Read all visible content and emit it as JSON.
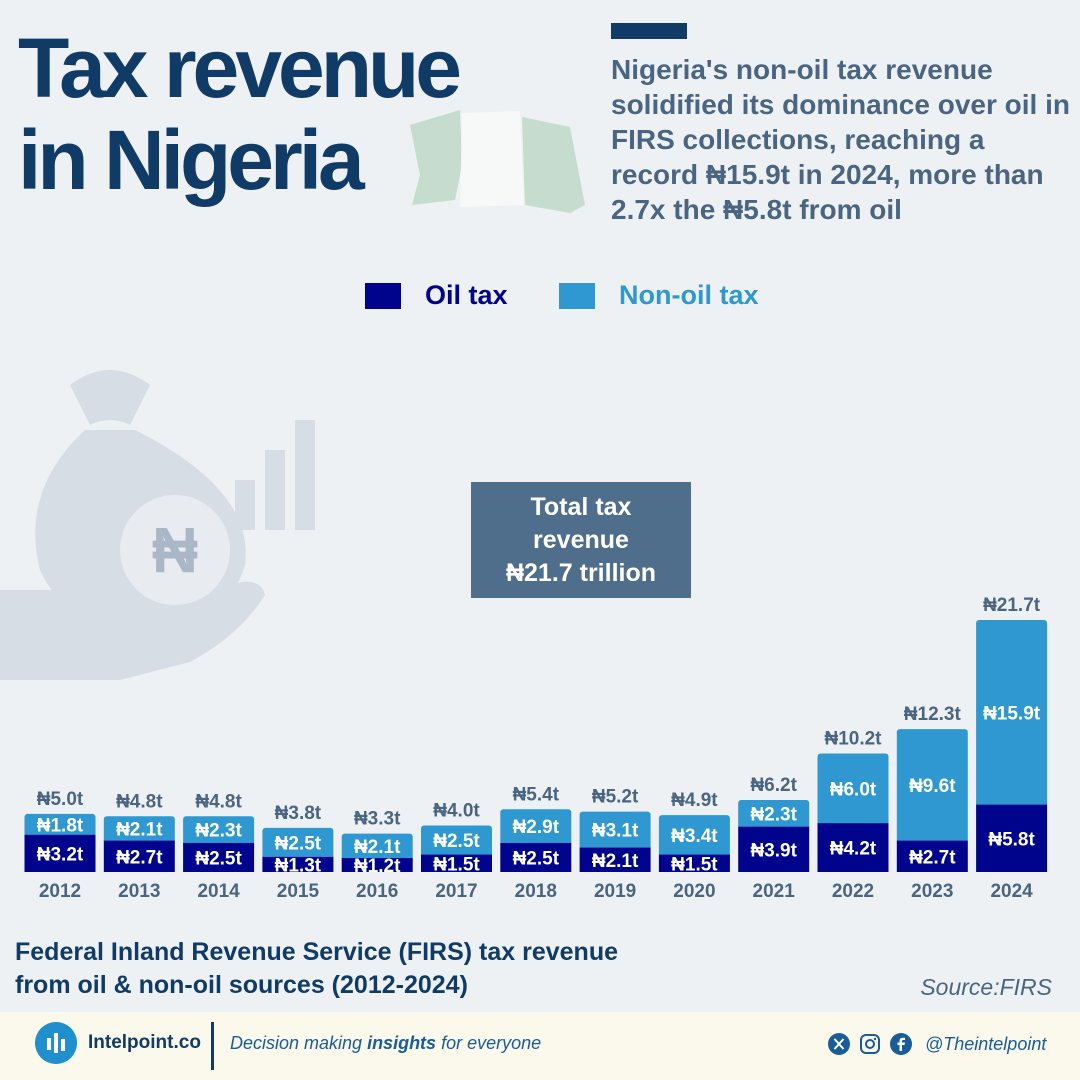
{
  "header": {
    "title_line1": "Tax revenue",
    "title_line2": "in Nigeria",
    "subtitle": "Nigeria's non-oil tax revenue solidified its dominance over oil in FIRS collections, reaching a record ₦15.9t in 2024, more than 2.7x the ₦5.8t from oil"
  },
  "callout": {
    "line1": "Total tax",
    "line2": "revenue",
    "line3": "₦21.7 trillion"
  },
  "footer": {
    "chart_title_line1": "Federal Inland Revenue Service (FIRS) tax revenue",
    "chart_title_line2": "from oil & non-oil sources (2012-2024)",
    "source": "Source:FIRS"
  },
  "brand": {
    "name": "Intelpoint.co",
    "tagline_pre": "Decision making ",
    "tagline_bold": "insights",
    "tagline_post": " for everyone",
    "handle": "@Theintelpoint"
  },
  "colors": {
    "oil": "#00048c",
    "non_oil": "#2f98d1",
    "title": "#0f3b66",
    "muted": "#4a6581",
    "callout_bg": "#4f6e8b"
  },
  "icons": {
    "background": "money-bag-in-hand-icon",
    "social": [
      "x-icon",
      "instagram-icon",
      "facebook-icon"
    ],
    "brand": "intelpoint-logo-icon"
  },
  "chart_data": {
    "type": "bar",
    "stacked": true,
    "categories": [
      "2012",
      "2013",
      "2014",
      "2015",
      "2016",
      "2017",
      "2018",
      "2019",
      "2020",
      "2021",
      "2022",
      "2023",
      "2024"
    ],
    "series": [
      {
        "name": "Oil tax",
        "values": [
          3.2,
          2.7,
          2.5,
          1.3,
          1.2,
          1.5,
          2.5,
          2.1,
          1.5,
          3.9,
          4.2,
          2.7,
          5.8
        ],
        "labels": [
          "₦3.2t",
          "₦2.7t",
          "₦2.5t",
          "₦1.3t",
          "₦1.2t",
          "₦1.5t",
          "₦2.5t",
          "₦2.1t",
          "₦1.5t",
          "₦3.9t",
          "₦4.2t",
          "₦2.7t",
          "₦5.8t"
        ]
      },
      {
        "name": "Non-oil tax",
        "values": [
          1.8,
          2.1,
          2.3,
          2.5,
          2.1,
          2.5,
          2.9,
          3.1,
          3.4,
          2.3,
          6.0,
          9.6,
          15.9
        ],
        "labels": [
          "₦1.8t",
          "₦2.1t",
          "₦2.3t",
          "₦2.5t",
          "₦2.1t",
          "₦2.5t",
          "₦2.9t",
          "₦3.1t",
          "₦3.4t",
          "₦2.3t",
          "₦6.0t",
          "₦9.6t",
          "₦15.9t"
        ]
      }
    ],
    "totals": [
      5.0,
      4.8,
      4.8,
      3.8,
      3.3,
      4.0,
      5.4,
      5.2,
      4.9,
      6.2,
      10.2,
      12.3,
      21.7
    ],
    "total_labels": [
      "₦5.0t",
      "₦4.8t",
      "₦4.8t",
      "₦3.8t",
      "₦3.3t",
      "₦4.0t",
      "₦5.4t",
      "₦5.2t",
      "₦4.9t",
      "₦6.2t",
      "₦10.2t",
      "₦12.3t",
      "₦21.7t"
    ],
    "ylim": [
      0,
      21.7
    ],
    "grid": false,
    "legend_position": "top-center",
    "xlabel": "",
    "ylabel": ""
  }
}
